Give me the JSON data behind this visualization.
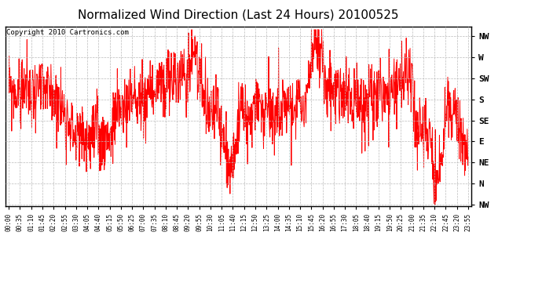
{
  "title": "Normalized Wind Direction (Last 24 Hours) 20100525",
  "copyright_text": "Copyright 2010 Cartronics.com",
  "background_color": "#ffffff",
  "line_color": "#ff0000",
  "grid_color": "#bbbbbb",
  "ytick_labels": [
    "NW",
    "W",
    "SW",
    "S",
    "SE",
    "E",
    "NE",
    "N",
    "NW"
  ],
  "ytick_values": [
    8,
    7,
    6,
    5,
    4,
    3,
    2,
    1,
    0
  ],
  "ylim": [
    -0.05,
    8.45
  ],
  "xtick_labels": [
    "00:00",
    "00:35",
    "01:10",
    "01:45",
    "02:20",
    "02:55",
    "03:30",
    "04:05",
    "04:40",
    "05:15",
    "05:50",
    "06:25",
    "07:00",
    "07:35",
    "08:10",
    "08:45",
    "09:20",
    "09:55",
    "10:30",
    "11:05",
    "11:40",
    "12:15",
    "12:50",
    "13:25",
    "14:00",
    "14:35",
    "15:10",
    "15:45",
    "16:20",
    "16:55",
    "17:30",
    "18:05",
    "18:40",
    "19:15",
    "19:50",
    "20:25",
    "21:00",
    "21:35",
    "22:10",
    "22:45",
    "23:20",
    "23:55"
  ],
  "figsize": [
    6.9,
    3.75
  ],
  "dpi": 100,
  "title_fontsize": 11,
  "copyright_fontsize": 6.5,
  "ytick_fontsize": 8,
  "xtick_fontsize": 5.5,
  "linewidth": 0.7
}
